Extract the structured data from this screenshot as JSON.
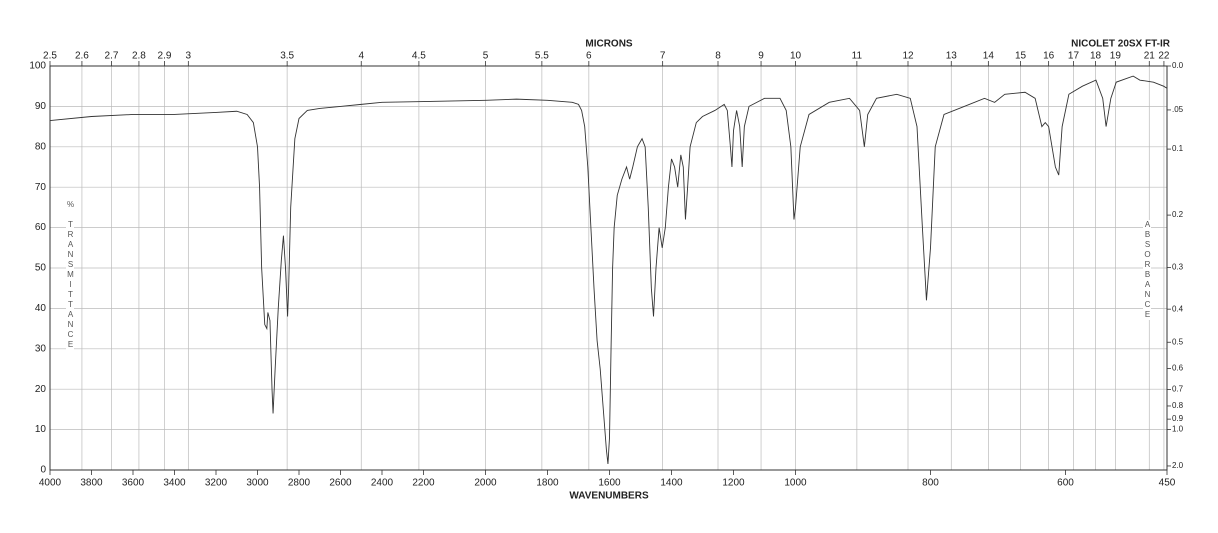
{
  "chart_data": {
    "type": "line",
    "annotation": "NICOLET 20SX FT-IR",
    "xlabel": "WAVENUMBERS",
    "x2label": "MICRONS",
    "ylabel": "% TRANSMITTANCE",
    "y2label": "ABSORBANCE",
    "xlim": [
      4000,
      450
    ],
    "ylim": [
      0,
      100
    ],
    "xticks": [
      4000,
      3800,
      3600,
      3400,
      3200,
      3000,
      2800,
      2600,
      2400,
      2200,
      2000,
      1800,
      1600,
      1400,
      1200,
      1000,
      800,
      600,
      450
    ],
    "yticks": [
      0,
      10,
      20,
      30,
      40,
      50,
      60,
      70,
      80,
      90,
      100
    ],
    "x2ticks": [
      2.5,
      2.6,
      2.7,
      2.8,
      2.9,
      3,
      3.5,
      4,
      4.5,
      5,
      5.5,
      6,
      7,
      8,
      9,
      10,
      11,
      12,
      13,
      14,
      15,
      16,
      17,
      18,
      19,
      21,
      22
    ],
    "y2ticks": [
      {
        "value": 0,
        "label": "0.0"
      },
      {
        "value": 0.05,
        "label": ".05"
      },
      {
        "value": 0.1,
        "label": "0.1"
      },
      {
        "value": 0.2,
        "label": "0.2"
      },
      {
        "value": 0.3,
        "label": "0.3"
      },
      {
        "value": 0.4,
        "label": "0.4"
      },
      {
        "value": 0.5,
        "label": "0.5"
      },
      {
        "value": 0.6,
        "label": "0.6"
      },
      {
        "value": 0.7,
        "label": "0.7"
      },
      {
        "value": 0.8,
        "label": "0.8"
      },
      {
        "value": 0.9,
        "label": "0.9"
      },
      {
        "value": 1,
        "label": "1.0"
      },
      {
        "value": 2,
        "label": "2.0"
      }
    ],
    "grid": true,
    "x": [
      4000,
      3800,
      3600,
      3400,
      3200,
      3100,
      3050,
      3020,
      3000,
      2990,
      2980,
      2965,
      2955,
      2950,
      2940,
      2930,
      2925,
      2915,
      2900,
      2885,
      2875,
      2865,
      2855,
      2850,
      2840,
      2820,
      2800,
      2760,
      2700,
      2600,
      2500,
      2400,
      2200,
      2000,
      1900,
      1800,
      1720,
      1700,
      1690,
      1680,
      1670,
      1660,
      1650,
      1640,
      1630,
      1620,
      1610,
      1605,
      1600,
      1595,
      1590,
      1585,
      1575,
      1560,
      1545,
      1535,
      1525,
      1510,
      1495,
      1485,
      1475,
      1465,
      1458,
      1450,
      1440,
      1430,
      1420,
      1410,
      1400,
      1390,
      1380,
      1370,
      1362,
      1355,
      1348,
      1340,
      1320,
      1300,
      1260,
      1230,
      1220,
      1210,
      1205,
      1200,
      1190,
      1180,
      1172,
      1165,
      1150,
      1100,
      1050,
      1030,
      1015,
      1005,
      1000,
      993,
      980,
      950,
      920,
      905,
      898,
      893,
      880,
      850,
      830,
      820,
      812,
      806,
      800,
      793,
      780,
      750,
      720,
      705,
      690,
      660,
      645,
      635,
      630,
      625,
      615,
      610,
      605,
      595,
      575,
      555,
      545,
      540,
      533,
      525,
      500,
      490,
      470,
      455,
      450
    ],
    "series": [
      {
        "color": "#333333",
        "values": [
          86.5,
          87.5,
          88,
          88,
          88.5,
          88.8,
          88,
          86,
          80,
          70,
          50,
          36,
          35,
          39,
          37,
          20,
          14,
          25,
          40,
          52,
          58,
          50,
          38,
          45,
          65,
          82,
          87,
          89,
          89.5,
          90,
          90.5,
          91,
          91.2,
          91.5,
          91.8,
          91.5,
          91,
          90.5,
          89,
          85,
          75,
          60,
          45,
          32,
          25,
          15,
          5,
          1.5,
          8,
          30,
          50,
          60,
          68,
          72,
          75,
          72,
          75,
          80,
          82,
          80,
          65,
          45,
          38,
          50,
          60,
          55,
          60,
          70,
          77,
          75,
          70,
          78,
          75,
          62,
          70,
          80,
          86,
          87.5,
          89,
          90.5,
          89,
          80,
          75,
          84,
          89,
          85,
          75,
          85,
          90,
          92,
          92,
          89,
          80,
          62,
          65,
          80,
          88,
          91,
          92,
          89,
          80,
          88,
          92,
          93,
          92,
          85,
          60,
          42,
          55,
          80,
          88,
          90,
          92,
          91,
          93,
          93.5,
          92,
          85,
          86,
          85,
          75,
          73,
          85,
          93,
          95,
          96.5,
          92,
          85,
          92,
          96,
          97.5,
          96.5,
          96,
          95,
          94.5
        ]
      }
    ]
  }
}
